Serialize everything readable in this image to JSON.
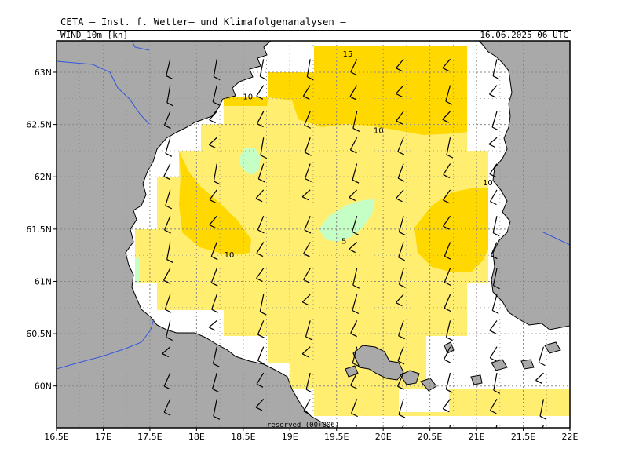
{
  "header": {
    "title": "CETA — Inst. f. Wetter— und Klimafolgenanalysen —",
    "variable": "WIND_10m [kn]",
    "valid_time": "16.06.2025 06 UTC"
  },
  "footer": {
    "text": "reserved (00+006)"
  },
  "colors": {
    "sea": "#ffffff",
    "land": "#a9a9a9",
    "level_0_5": "#c6ffc6",
    "level_5_10": "#ffee70",
    "level_10_15": "#ffd800",
    "grid": "#888888",
    "rivers": "#3355dd"
  },
  "chart_data": {
    "type": "heatmap",
    "title": "WIND_10m [kn]",
    "xlim": [
      16.5,
      22.0
    ],
    "ylim": [
      59.6,
      63.3
    ],
    "x_ticks": [
      {
        "value": 16.5,
        "label": "16.5E"
      },
      {
        "value": 17.0,
        "label": "17E"
      },
      {
        "value": 17.5,
        "label": "17.5E"
      },
      {
        "value": 18.0,
        "label": "18E"
      },
      {
        "value": 18.5,
        "label": "18.5E"
      },
      {
        "value": 19.0,
        "label": "19E"
      },
      {
        "value": 19.5,
        "label": "19.5E"
      },
      {
        "value": 20.0,
        "label": "20E"
      },
      {
        "value": 20.5,
        "label": "20.5E"
      },
      {
        "value": 21.0,
        "label": "21E"
      },
      {
        "value": 21.5,
        "label": "21.5E"
      },
      {
        "value": 22.0,
        "label": "22E"
      }
    ],
    "y_ticks": [
      {
        "value": 60.0,
        "label": "60N"
      },
      {
        "value": 60.5,
        "label": "60.5N"
      },
      {
        "value": 61.0,
        "label": "61N"
      },
      {
        "value": 61.5,
        "label": "61.5N"
      },
      {
        "value": 62.0,
        "label": "62N"
      },
      {
        "value": 62.5,
        "label": "62.5N"
      },
      {
        "value": 63.0,
        "label": "63N"
      }
    ],
    "contour_levels": [
      5,
      10,
      15
    ],
    "grid": true,
    "contour_labels": [
      {
        "value": "15",
        "lon": 19.62,
        "lat": 63.15
      },
      {
        "value": "10",
        "lon": 18.55,
        "lat": 62.74
      },
      {
        "value": "10",
        "lon": 19.95,
        "lat": 62.42
      },
      {
        "value": "10",
        "lon": 21.12,
        "lat": 61.92
      },
      {
        "value": "10",
        "lon": 18.35,
        "lat": 61.23
      },
      {
        "value": "5",
        "lon": 19.58,
        "lat": 61.36
      }
    ],
    "wind_barbs_note": "one barb per 0.25°×0.25° grid cell over the sea, mostly SW–W winds of ~10 kn"
  }
}
